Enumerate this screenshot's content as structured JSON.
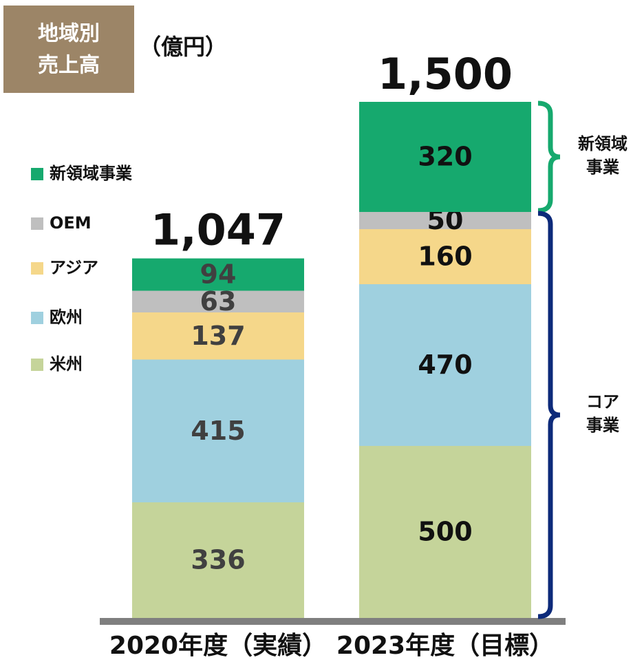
{
  "chart_data": {
    "type": "stacked_bar",
    "title": [
      "地域別",
      "売上高"
    ],
    "unit": "（億円）",
    "categories": [
      "2020年度（実績）",
      "2023年度（目標）"
    ],
    "series": [
      {
        "name": "米州",
        "color": "#c5d49a",
        "values": [
          336,
          500
        ]
      },
      {
        "name": "欧州",
        "color": "#9fd0df",
        "values": [
          415,
          470
        ]
      },
      {
        "name": "アジア",
        "color": "#f5d78a",
        "values": [
          137,
          160
        ]
      },
      {
        "name": "OEM",
        "color": "#bfbfbf",
        "values": [
          63,
          50
        ]
      },
      {
        "name": "新領域事業",
        "color": "#16a96e",
        "values": [
          94,
          320
        ]
      }
    ],
    "totals": {
      "values": [
        1047,
        1500
      ],
      "value_labels": [
        "1,047",
        "1,500"
      ]
    },
    "ylim": [
      0,
      1500
    ],
    "annotations": [
      {
        "lines": [
          "新領域",
          "事業"
        ],
        "color": "#16a96e"
      },
      {
        "lines": [
          "コア",
          "事業"
        ],
        "color": "#0d2a7a"
      }
    ]
  }
}
